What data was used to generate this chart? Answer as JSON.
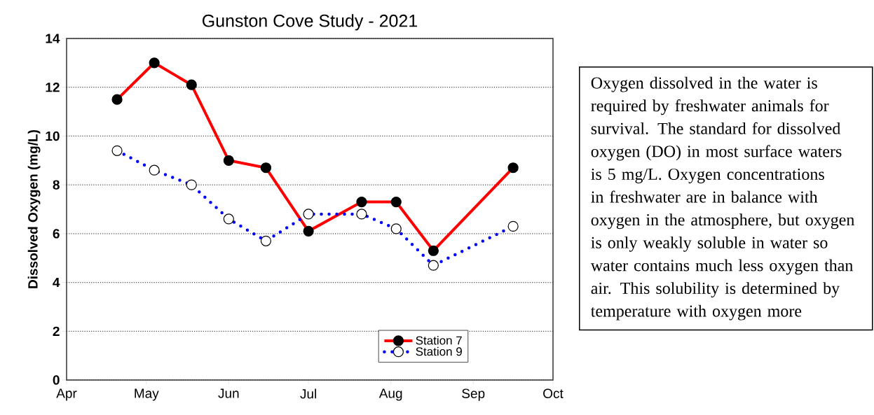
{
  "chart_data": {
    "type": "line",
    "title": "Gunston Cove Study - 2021",
    "ylabel": "Dissolved Oxygen (mg/L)",
    "x": [
      "2021-04-20",
      "2021-05-04",
      "2021-05-18",
      "2021-06-01",
      "2021-06-15",
      "2021-07-01",
      "2021-07-21",
      "2021-08-03",
      "2021-08-17",
      "2021-09-16"
    ],
    "series": [
      {
        "name": "Station 7",
        "color": "#ff0000",
        "line_style": "solid",
        "values": [
          11.5,
          13.0,
          12.1,
          9.0,
          8.7,
          6.1,
          7.3,
          7.3,
          5.3,
          8.7
        ]
      },
      {
        "name": "Station 9",
        "color": "#0000ff",
        "line_style": "dotted",
        "values": [
          9.4,
          8.6,
          8.0,
          6.6,
          5.7,
          6.8,
          6.8,
          6.2,
          4.7,
          6.3
        ]
      }
    ],
    "xlim": [
      "2021-04-01",
      "2021-10-01"
    ],
    "xticks": [
      {
        "value": "2021-04-01",
        "label": "Apr"
      },
      {
        "value": "2021-05-01",
        "label": "May"
      },
      {
        "value": "2021-06-01",
        "label": "Jun"
      },
      {
        "value": "2021-07-01",
        "label": "Jul"
      },
      {
        "value": "2021-08-01",
        "label": "Aug"
      },
      {
        "value": "2021-09-01",
        "label": "Sep"
      },
      {
        "value": "2021-10-01",
        "label": "Oct"
      }
    ],
    "ylim": [
      0,
      14
    ],
    "yticks": [
      0,
      2,
      4,
      6,
      8,
      10,
      12,
      14
    ],
    "grid": "y",
    "legend": "bottom right",
    "marker": "circle",
    "annotations": [
      "Oxygen dissolved in the water is required by freshwater animals for survival. The standard for dissolved oxygen (DO) in most surface waters is 5 mg/L. Oxygen concentrations in freshwater are in balance with oxygen in the atmosphere, but oxygen is only weakly soluble in water so water contains much less oxygen than air.  This solubility is determined by temperature with oxygen more"
    ]
  }
}
